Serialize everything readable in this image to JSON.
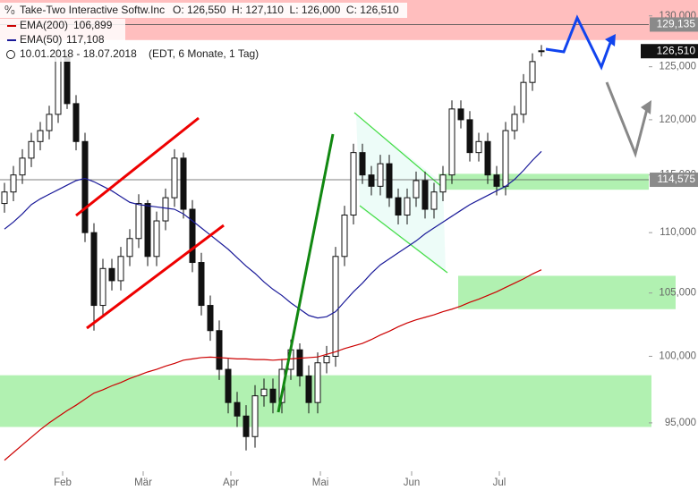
{
  "chart_data": {
    "type": "candlestick",
    "title": "Take-Two Interactive Softw.Inc",
    "ohlc_text": "O: 126,550  H: 127,110  L: 126,000  C: 126,510",
    "date_range": "10.01.2018 - 18.07.2018",
    "period_note": "(EDT, 6 Monate, 1 Tag)",
    "log_scale": true,
    "grid": false,
    "xlim": [
      -0.5,
      72
    ],
    "xticks": [
      {
        "value": 6.5,
        "label": "Feb"
      },
      {
        "value": 15.5,
        "label": "Mär"
      },
      {
        "value": 25.3,
        "label": "Apr"
      },
      {
        "value": 35.3,
        "label": "Mai"
      },
      {
        "value": 45.5,
        "label": "Jun"
      },
      {
        "value": 55.3,
        "label": "Jul"
      }
    ],
    "ylim": [
      91650,
      131600
    ],
    "yticks": [
      {
        "value": 95000,
        "label": "95,000"
      },
      {
        "value": 100000,
        "label": "100,000"
      },
      {
        "value": 105000,
        "label": "105,000"
      },
      {
        "value": 110000,
        "label": "110,000"
      },
      {
        "value": 115000,
        "label": "115,000"
      },
      {
        "value": 120000,
        "label": "120,000"
      },
      {
        "value": 125000,
        "label": "125,000"
      },
      {
        "value": 130000,
        "label": "130,000"
      }
    ],
    "candles": {
      "open": [
        112500,
        113500,
        115000,
        116500,
        118000,
        119000,
        120500,
        126000,
        121500,
        118000,
        110000,
        104000,
        107000,
        106000,
        108000,
        109500,
        112500,
        108000,
        111000,
        113000,
        116500,
        112000,
        107500,
        104000,
        102000,
        99000,
        96500,
        95500,
        94000,
        97000,
        97500,
        96500,
        99000,
        100500,
        98500,
        96500,
        99500,
        100000,
        108000,
        111500,
        117000,
        115000,
        114000,
        116000,
        113000,
        111500,
        113000,
        114500,
        112000,
        113500,
        115000,
        121000,
        120000,
        117000,
        118000,
        115000,
        114000,
        119000,
        120500,
        123500,
        126550
      ],
      "high": [
        114300,
        115800,
        117300,
        118800,
        119800,
        121300,
        128000,
        126500,
        122300,
        118800,
        110800,
        107800,
        107800,
        108800,
        110300,
        113300,
        112800,
        111800,
        113800,
        117300,
        117000,
        112800,
        108300,
        104800,
        102800,
        99800,
        97300,
        96300,
        97800,
        98300,
        98300,
        99800,
        101300,
        101000,
        99300,
        100300,
        100800,
        108800,
        112300,
        117800,
        117800,
        115800,
        116800,
        116800,
        113800,
        113800,
        115300,
        115300,
        114300,
        115800,
        121800,
        121800,
        120800,
        118800,
        118800,
        115800,
        119800,
        121300,
        124300,
        126300,
        127110
      ],
      "low": [
        111700,
        112700,
        114200,
        115700,
        117200,
        118200,
        119700,
        121000,
        117200,
        109200,
        102000,
        103200,
        105200,
        105200,
        107200,
        108700,
        107200,
        107200,
        110200,
        112200,
        111200,
        106700,
        103200,
        101200,
        98200,
        95700,
        94700,
        93000,
        93200,
        96200,
        95700,
        95700,
        98200,
        97700,
        95700,
        95700,
        98700,
        99200,
        107200,
        110700,
        114200,
        113200,
        113200,
        112200,
        110700,
        110700,
        112200,
        111200,
        111200,
        112700,
        114200,
        119200,
        116200,
        116200,
        114200,
        113200,
        113200,
        118200,
        119700,
        122700,
        126000
      ],
      "close": [
        113500,
        115000,
        116500,
        118000,
        119000,
        120500,
        126000,
        121500,
        118000,
        110000,
        104000,
        107000,
        106000,
        108000,
        109500,
        112500,
        108000,
        111000,
        113000,
        116500,
        112000,
        107500,
        104000,
        102000,
        99000,
        96500,
        95500,
        94000,
        97000,
        97500,
        96500,
        99000,
        100500,
        98500,
        96500,
        99500,
        100000,
        108000,
        111500,
        117000,
        115000,
        114000,
        116000,
        113000,
        111500,
        113000,
        114500,
        112000,
        113500,
        115000,
        121000,
        120000,
        117000,
        118000,
        115000,
        114000,
        119000,
        120500,
        123500,
        125500,
        126510
      ]
    },
    "series": [
      {
        "name": "EMA(200)",
        "color": "#cc0000",
        "last_label": "106,899",
        "values": [
          92300,
          92850,
          93400,
          93950,
          94500,
          95000,
          95450,
          95900,
          96300,
          96750,
          97200,
          97450,
          97750,
          98000,
          98300,
          98550,
          98800,
          99000,
          99250,
          99450,
          99700,
          99800,
          99900,
          99940,
          99900,
          99850,
          99800,
          99800,
          99750,
          99750,
          99700,
          99750,
          99800,
          99850,
          99900,
          99950,
          100150,
          100350,
          100600,
          100800,
          101000,
          101300,
          101650,
          101950,
          102300,
          102600,
          102850,
          103050,
          103250,
          103500,
          103700,
          103950,
          104250,
          104500,
          104800,
          105100,
          105450,
          105800,
          106150,
          106550,
          106899
        ]
      },
      {
        "name": "EMA(50)",
        "color": "#1a1a99",
        "last_label": "117,108",
        "values": [
          110300,
          110900,
          111600,
          112400,
          112900,
          113300,
          113700,
          114100,
          114500,
          114700,
          114400,
          114000,
          113600,
          113100,
          112600,
          112400,
          112300,
          112200,
          112100,
          112000,
          111600,
          111000,
          110400,
          109800,
          109200,
          108600,
          107900,
          107200,
          106600,
          105900,
          105300,
          104800,
          104200,
          103700,
          103200,
          103000,
          103100,
          103500,
          104300,
          105100,
          105800,
          106600,
          107300,
          107800,
          108300,
          108800,
          109300,
          109900,
          110400,
          110900,
          111400,
          111900,
          112400,
          112800,
          113200,
          113600,
          114000,
          114600,
          115400,
          116300,
          117108
        ]
      }
    ],
    "hlines": [
      {
        "value": 129135,
        "label": "129,135"
      },
      {
        "value": 114575,
        "label": "114,575"
      }
    ],
    "last_price": {
      "value": 126510,
      "label": "126,510"
    },
    "zones": [
      {
        "from": 127600,
        "to": 131600,
        "x": [
          -0.5,
          77.5
        ],
        "color": "#ffb3b3"
      },
      {
        "from": 113700,
        "to": 115100,
        "x": [
          48.5,
          72
        ],
        "color": "#a8f0a8"
      },
      {
        "from": 103700,
        "to": 106400,
        "x": [
          50.7,
          75
        ],
        "color": "#a8f0a8"
      },
      {
        "from": 94700,
        "to": 98550,
        "x": [
          -0.5,
          72.3
        ],
        "color": "#a8f0a8"
      }
    ]
  }
}
